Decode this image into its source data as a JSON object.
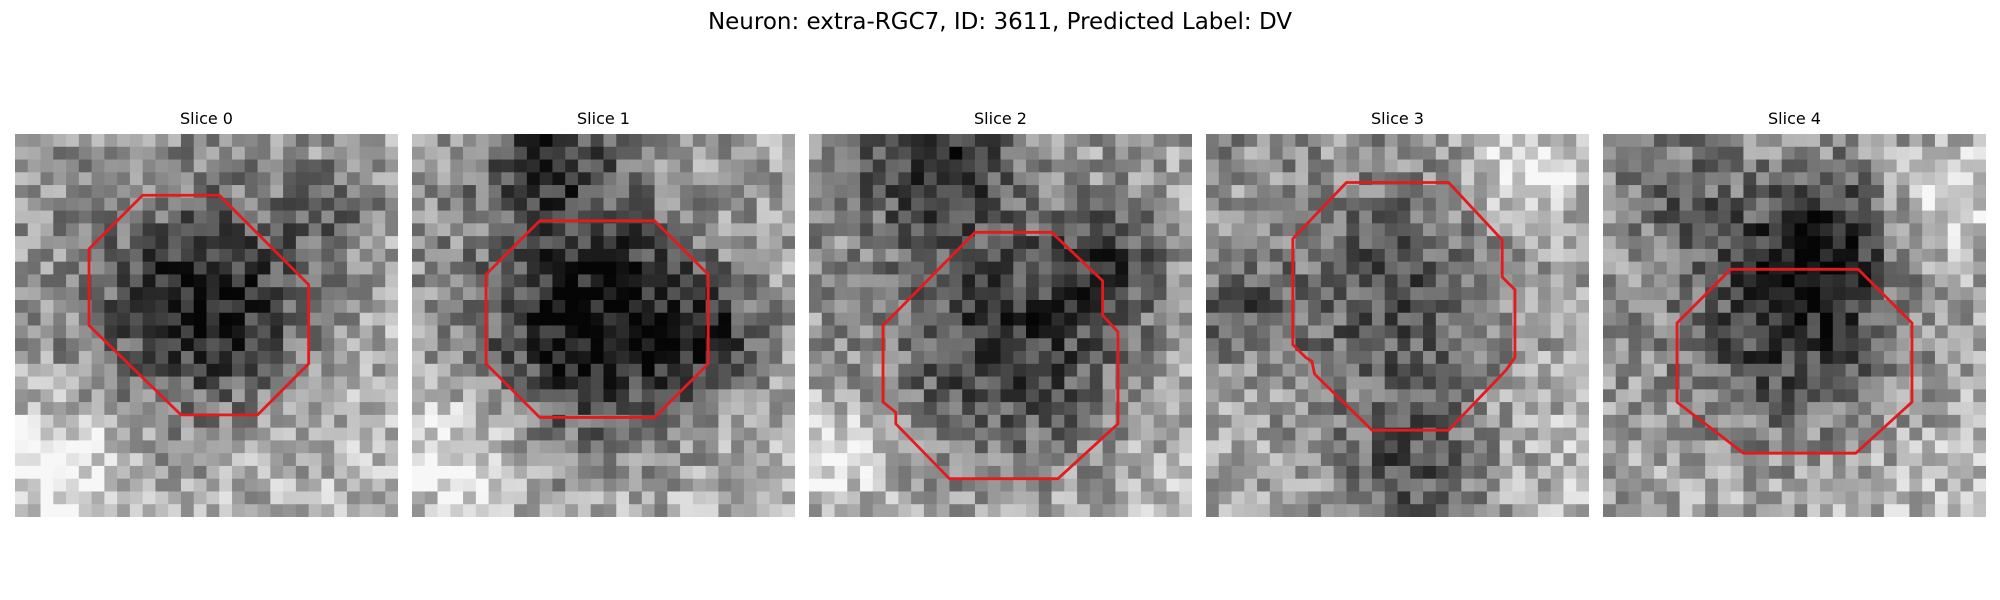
{
  "figure": {
    "title": "Neuron: extra-RGC7, ID: 3611, Predicted Label: DV"
  },
  "colors": {
    "contour": "#e41a1c",
    "background": "#ffffff"
  },
  "panels": [
    {
      "title": "Slice 0"
    },
    {
      "title": "Slice 1"
    },
    {
      "title": "Slice 2"
    },
    {
      "title": "Slice 3"
    },
    {
      "title": "Slice 4"
    }
  ]
}
